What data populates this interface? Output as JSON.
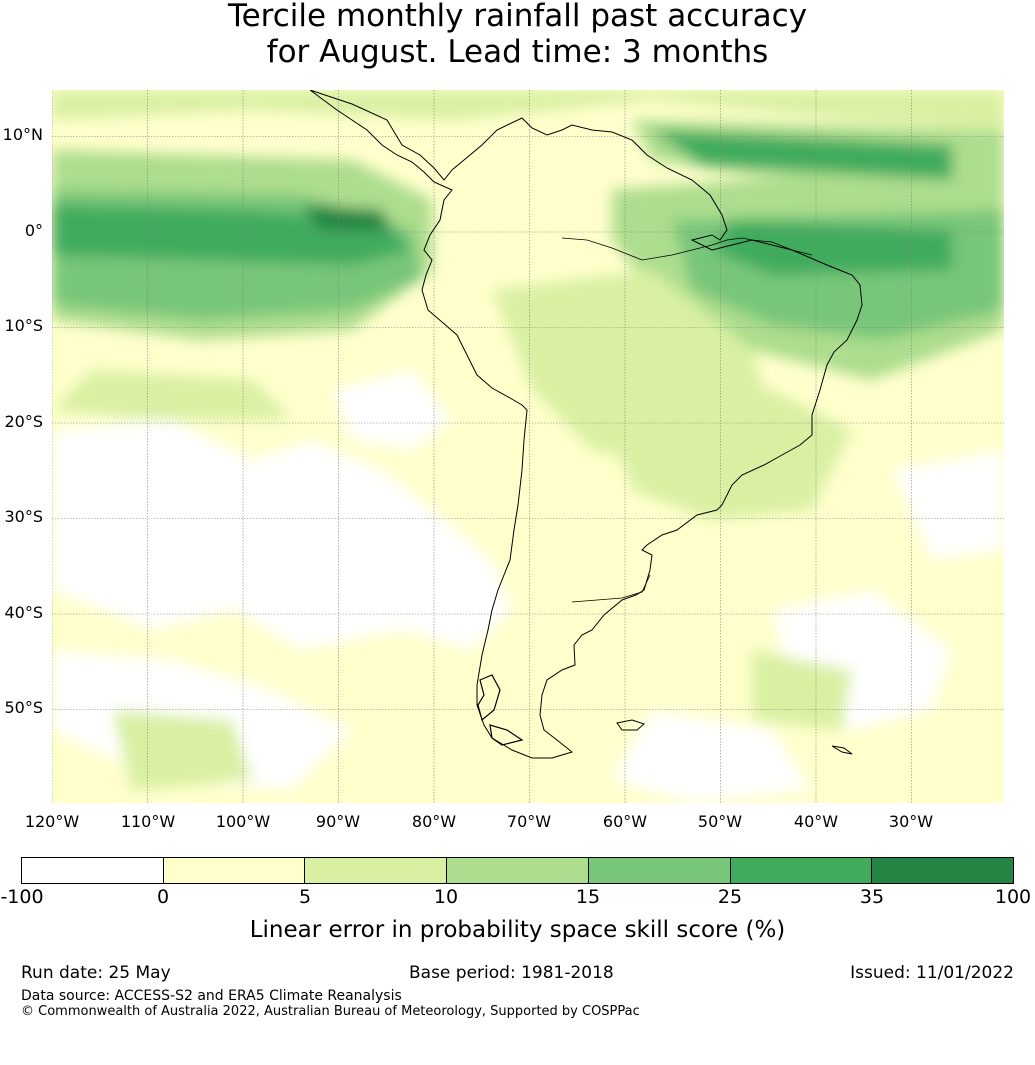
{
  "title": {
    "line1": "Tercile monthly rainfall past accuracy",
    "line2": "for August. Lead time: 3 months"
  },
  "map": {
    "region": "South America",
    "lat_labels": [
      "10°N",
      "0°",
      "10°S",
      "20°S",
      "30°S",
      "40°S",
      "50°S"
    ],
    "lon_labels": [
      "120°W",
      "110°W",
      "100°W",
      "90°W",
      "80°W",
      "70°W",
      "60°W",
      "50°W",
      "40°W",
      "30°W"
    ],
    "gridlines": true,
    "coastline_color": "#000000"
  },
  "colorbar": {
    "ticks": [
      "-100",
      "0",
      "5",
      "10",
      "15",
      "25",
      "35",
      "100"
    ],
    "colors": [
      "#ffffff",
      "#ffffcc",
      "#d9f0a3",
      "#addd8e",
      "#78c679",
      "#41ab5d",
      "#238443"
    ],
    "label": "Linear error in probability space skill score (%)"
  },
  "footer": {
    "run_date": "Run date: 25 May",
    "base_period": "Base period: 1981-2018",
    "issued": "Issued: 11/01/2022",
    "data_source": "Data source: ACCESS-S2 and ERA5 Climate Reanalysis",
    "copyright": "© Commonwealth of Australia 2022, Australian Bureau of Meteorology, Supported by COSPPac"
  }
}
